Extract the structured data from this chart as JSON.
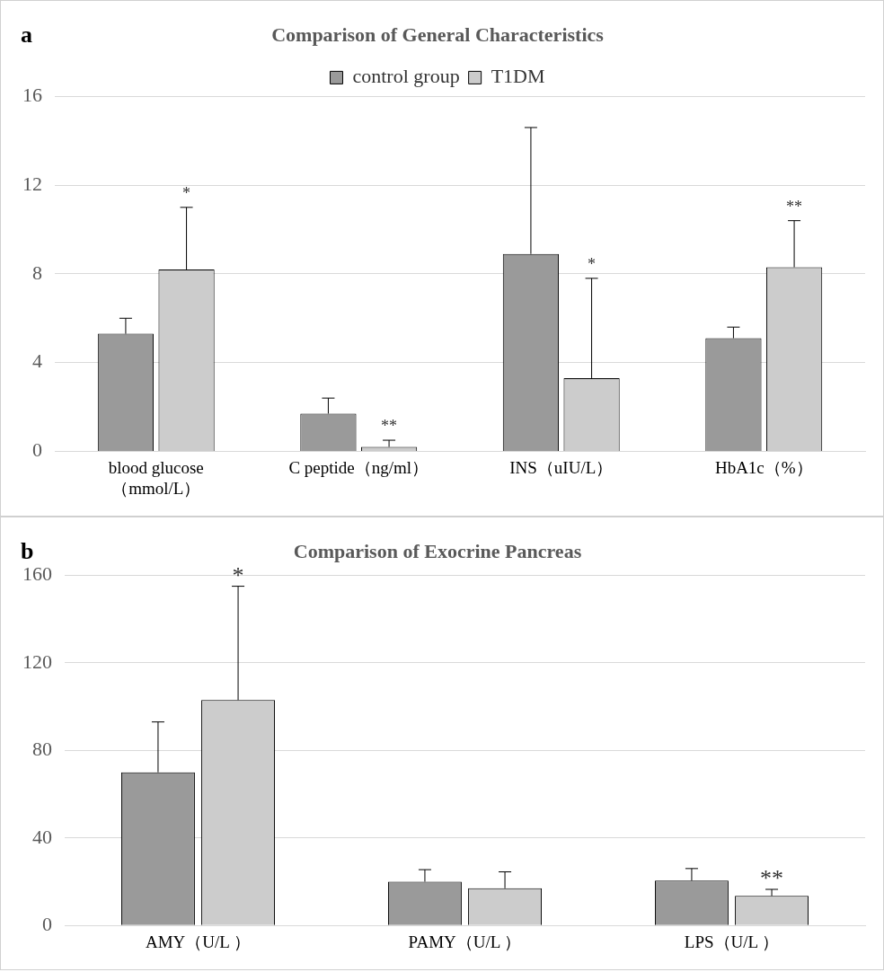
{
  "chart_data": [
    {
      "type": "bar",
      "title": "Comparison of General Characteristics",
      "categories": [
        "blood glucose（mmol/L）",
        "C peptide（ng/ml）",
        "INS（uIU/L）",
        "HbA1c（%）"
      ],
      "series": [
        {
          "name": "control group",
          "color": "#9a9a9a",
          "values": [
            5.3,
            1.7,
            8.9,
            5.1
          ],
          "errors": [
            0.7,
            0.7,
            5.7,
            0.5
          ]
        },
        {
          "name": "T1DM",
          "color": "#cccccc",
          "values": [
            8.2,
            0.2,
            3.3,
            8.3
          ],
          "errors": [
            2.8,
            0.3,
            4.5,
            2.1
          ]
        }
      ],
      "ylim": [
        0,
        16
      ],
      "yticks": [
        0,
        4,
        8,
        12,
        16
      ],
      "grid": "y",
      "legend": "top",
      "annotations": [
        "a",
        "*",
        "**",
        "*",
        "**"
      ]
    },
    {
      "type": "bar",
      "title": "Comparison of Exocrine Pancreas",
      "categories": [
        "AMY（U/L ）",
        "PAMY（U/L ）",
        "LPS（U/L ）"
      ],
      "series": [
        {
          "color": "#9a9a9a",
          "values": [
            70,
            20,
            20.5
          ],
          "errors": [
            23,
            5.5,
            5.5
          ]
        },
        {
          "color": "#cccccc",
          "values": [
            103,
            17,
            13.5
          ],
          "errors": [
            52,
            7.5,
            3
          ]
        }
      ],
      "ylim": [
        0,
        160
      ],
      "yticks": [
        0,
        40,
        80,
        120,
        160
      ],
      "grid": "y",
      "annotations": [
        "b",
        "*",
        "**"
      ]
    }
  ]
}
